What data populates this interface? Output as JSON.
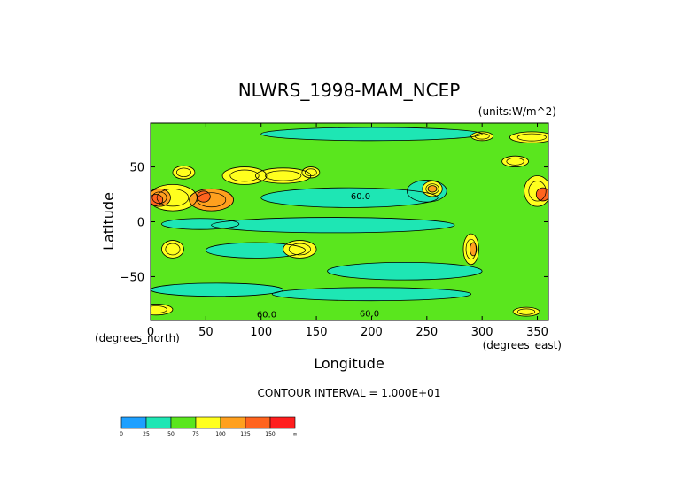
{
  "chart_data": {
    "type": "heatmap",
    "title": "NLWRS_1998-MAM_NCEP",
    "units_label": "(units:W/m^2)",
    "xlabel": "Longitude",
    "ylabel": "Latitude",
    "x_axis_note": "(degrees_east)",
    "y_axis_note": "(degrees_north)",
    "xlim": [
      0,
      360
    ],
    "ylim": [
      -90,
      90
    ],
    "x_ticks": [
      {
        "value": 0,
        "label": "0"
      },
      {
        "value": 50,
        "label": "50"
      },
      {
        "value": 100,
        "label": "100"
      },
      {
        "value": 150,
        "label": "150"
      },
      {
        "value": 200,
        "label": "200"
      },
      {
        "value": 250,
        "label": "250"
      },
      {
        "value": 300,
        "label": "300"
      },
      {
        "value": 350,
        "label": "350"
      }
    ],
    "y_ticks": [
      {
        "value": 50,
        "label": "50"
      },
      {
        "value": 0,
        "label": "0"
      },
      {
        "value": -50,
        "label": "−50"
      }
    ],
    "contour_interval_text": "CONTOUR INTERVAL = 1.000E+01",
    "contour_labels": [
      {
        "text": "60.0",
        "lon": 190,
        "lat": 24
      },
      {
        "text": "60.0",
        "lon": 105,
        "lat": -84
      },
      {
        "text": "60.0",
        "lon": 198,
        "lat": -83
      }
    ],
    "colorbar": {
      "bins": [
        {
          "color": "#1EA0FF",
          "label": "0"
        },
        {
          "color": "#1EE6B4",
          "label": "25"
        },
        {
          "color": "#5AE61E",
          "label": "50"
        },
        {
          "color": "#FFFF1E",
          "label": "75"
        },
        {
          "color": "#FFA01E",
          "label": "100"
        },
        {
          "color": "#FF641E",
          "label": "125"
        },
        {
          "color": "#FF1E1E",
          "label": "150"
        }
      ],
      "end_label": "∞"
    },
    "base_color": "#5AE61E",
    "regions": [
      {
        "lon": 180,
        "lat": 22,
        "rx": 80,
        "ry": 9,
        "value": 45
      },
      {
        "lon": 250,
        "lat": 28,
        "rx": 18,
        "ry": 10,
        "value": 45
      },
      {
        "lon": 165,
        "lat": -3,
        "rx": 110,
        "ry": 7,
        "value": 45
      },
      {
        "lon": 45,
        "lat": -2,
        "rx": 35,
        "ry": 5,
        "value": 45
      },
      {
        "lon": 95,
        "lat": -26,
        "rx": 45,
        "ry": 7,
        "value": 45
      },
      {
        "lon": 230,
        "lat": -45,
        "rx": 70,
        "ry": 8,
        "value": 45
      },
      {
        "lon": 60,
        "lat": -62,
        "rx": 60,
        "ry": 6,
        "value": 45
      },
      {
        "lon": 200,
        "lat": -66,
        "rx": 90,
        "ry": 6,
        "value": 45
      },
      {
        "lon": 200,
        "lat": 80,
        "rx": 100,
        "ry": 6,
        "value": 45
      },
      {
        "lon": 20,
        "lat": 22,
        "rx": 22,
        "ry": 12,
        "value": 95
      },
      {
        "lon": 8,
        "lat": 22,
        "rx": 10,
        "ry": 8,
        "value": 115
      },
      {
        "lon": 5,
        "lat": 20,
        "rx": 6,
        "ry": 5,
        "value": 135
      },
      {
        "lon": 55,
        "lat": 20,
        "rx": 20,
        "ry": 10,
        "value": 100
      },
      {
        "lon": 48,
        "lat": 23,
        "rx": 6,
        "ry": 5,
        "value": 130
      },
      {
        "lon": 120,
        "lat": 42,
        "rx": 25,
        "ry": 7,
        "value": 85
      },
      {
        "lon": 85,
        "lat": 42,
        "rx": 20,
        "ry": 8,
        "value": 80
      },
      {
        "lon": 30,
        "lat": 45,
        "rx": 10,
        "ry": 6,
        "value": 80
      },
      {
        "lon": 145,
        "lat": 45,
        "rx": 8,
        "ry": 5,
        "value": 95
      },
      {
        "lon": 255,
        "lat": 30,
        "rx": 9,
        "ry": 7,
        "value": 90
      },
      {
        "lon": 255,
        "lat": 30,
        "rx": 4,
        "ry": 3,
        "value": 115
      },
      {
        "lon": 350,
        "lat": 28,
        "rx": 12,
        "ry": 14,
        "value": 95
      },
      {
        "lon": 355,
        "lat": 25,
        "rx": 6,
        "ry": 6,
        "value": 125
      },
      {
        "lon": 135,
        "lat": -25,
        "rx": 15,
        "ry": 8,
        "value": 85
      },
      {
        "lon": 20,
        "lat": -25,
        "rx": 10,
        "ry": 8,
        "value": 85
      },
      {
        "lon": 290,
        "lat": -25,
        "rx": 7,
        "ry": 14,
        "value": 85
      },
      {
        "lon": 292,
        "lat": -25,
        "rx": 3,
        "ry": 6,
        "value": 120
      },
      {
        "lon": 345,
        "lat": 77,
        "rx": 20,
        "ry": 5,
        "value": 85
      },
      {
        "lon": 300,
        "lat": 78,
        "rx": 10,
        "ry": 4,
        "value": 80
      },
      {
        "lon": 340,
        "lat": -82,
        "rx": 12,
        "ry": 4,
        "value": 80
      },
      {
        "lon": 5,
        "lat": -80,
        "rx": 15,
        "ry": 5,
        "value": 80
      },
      {
        "lon": 330,
        "lat": 55,
        "rx": 12,
        "ry": 5,
        "value": 80
      }
    ]
  }
}
